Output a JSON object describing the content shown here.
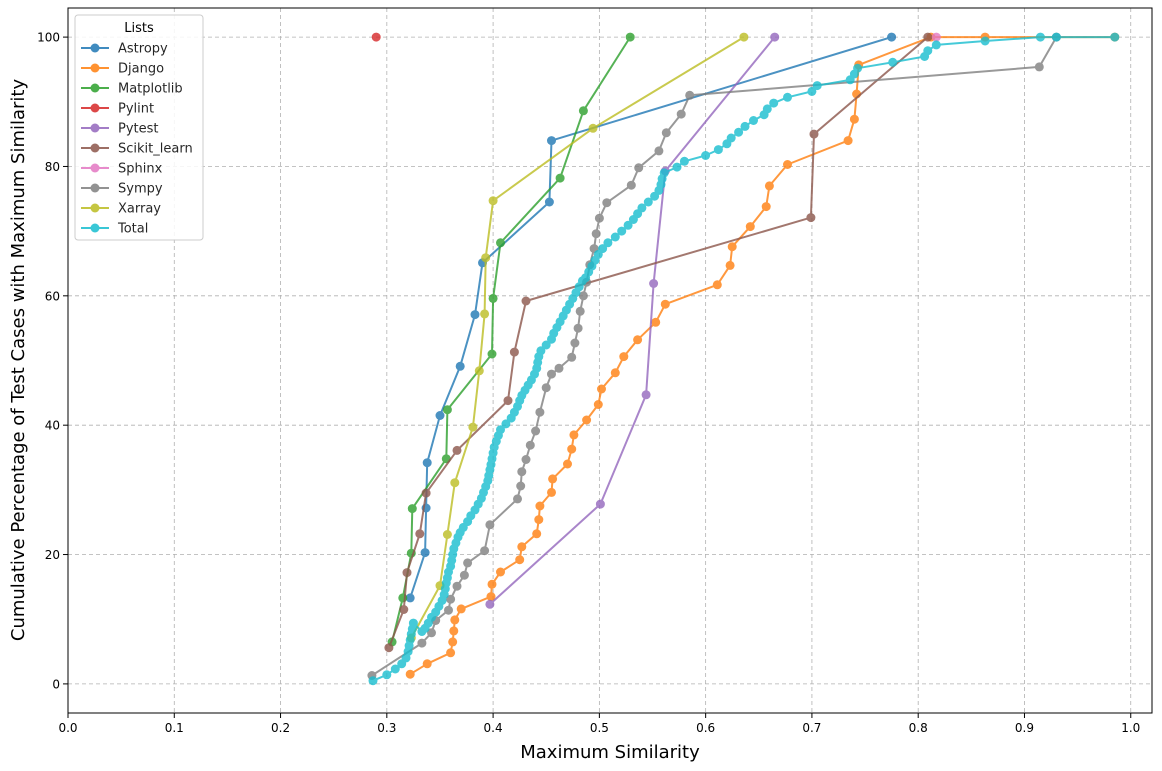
{
  "chart_data": {
    "type": "line",
    "xlabel": "Maximum Similarity",
    "ylabel": "Cumulative Percentage of Test Cases with Maximum Similarity",
    "xlim": [
      0.0,
      1.02
    ],
    "ylim": [
      -4.5,
      104.5
    ],
    "x_ticks": [
      0.0,
      0.1,
      0.2,
      0.3,
      0.4,
      0.5,
      0.6,
      0.7,
      0.8,
      0.9,
      1.0
    ],
    "x_tick_labels": [
      "0.0",
      "0.1",
      "0.2",
      "0.3",
      "0.4",
      "0.5",
      "0.6",
      "0.7",
      "0.8",
      "0.9",
      "1.0"
    ],
    "y_ticks": [
      0,
      20,
      40,
      60,
      80,
      100
    ],
    "y_tick_labels": [
      "0",
      "20",
      "40",
      "60",
      "80",
      "100"
    ],
    "grid": true,
    "legend": {
      "title": "Lists",
      "placement": "top-left"
    },
    "series": [
      {
        "name": "Astropy",
        "color": "#1f77b4",
        "x": [
          0.322,
          0.336,
          0.337,
          0.338,
          0.35,
          0.369,
          0.383,
          0.39,
          0.453,
          0.455,
          0.775
        ],
        "y": [
          13.3,
          20.3,
          27.2,
          34.2,
          41.5,
          49.1,
          57.1,
          65.1,
          74.5,
          84.0,
          100.0
        ]
      },
      {
        "name": "Django",
        "color": "#ff7f0e",
        "x": [
          0.322,
          0.338,
          0.36,
          0.362,
          0.363,
          0.364,
          0.37,
          0.398,
          0.399,
          0.407,
          0.425,
          0.427,
          0.441,
          0.443,
          0.444,
          0.455,
          0.456,
          0.47,
          0.474,
          0.476,
          0.488,
          0.499,
          0.502,
          0.515,
          0.523,
          0.536,
          0.553,
          0.562,
          0.611,
          0.623,
          0.625,
          0.642,
          0.657,
          0.66,
          0.677,
          0.734,
          0.74,
          0.742,
          0.744,
          0.812,
          0.863,
          0.985
        ],
        "y": [
          1.5,
          3.1,
          4.8,
          6.5,
          8.2,
          9.9,
          11.6,
          13.5,
          15.4,
          17.3,
          19.2,
          21.2,
          23.2,
          25.4,
          27.5,
          29.6,
          31.7,
          34.0,
          36.3,
          38.5,
          40.8,
          43.2,
          45.6,
          48.1,
          50.6,
          53.2,
          55.9,
          58.7,
          61.7,
          64.7,
          67.6,
          70.7,
          73.8,
          77.0,
          80.3,
          84.0,
          87.3,
          91.2,
          95.7,
          100.0,
          100.0,
          100.0
        ],
        "y_note": "points on curve"
      },
      {
        "name": "Matplotlib",
        "color": "#2ca02c",
        "x": [
          0.305,
          0.315,
          0.323,
          0.324,
          0.356,
          0.357,
          0.399,
          0.4,
          0.407,
          0.463,
          0.485,
          0.529
        ],
        "y": [
          6.5,
          13.3,
          20.2,
          27.1,
          34.8,
          42.4,
          51.0,
          59.6,
          68.2,
          78.2,
          88.6,
          100.0
        ]
      },
      {
        "name": "Pylint",
        "color": "#d62728",
        "x": [
          0.29
        ],
        "y": [
          100.0
        ]
      },
      {
        "name": "Pytest",
        "color": "#9467bd",
        "x": [
          0.397,
          0.501,
          0.544,
          0.551,
          0.562,
          0.665
        ],
        "y": [
          12.3,
          27.8,
          44.7,
          61.9,
          79.3,
          100.0
        ]
      },
      {
        "name": "Scikit_learn",
        "color": "#8c564b",
        "x": [
          0.302,
          0.316,
          0.319,
          0.331,
          0.337,
          0.366,
          0.414,
          0.42,
          0.431,
          0.699,
          0.702,
          0.809
        ],
        "y": [
          5.6,
          11.5,
          17.2,
          23.2,
          29.5,
          36.1,
          43.8,
          51.3,
          59.2,
          72.1,
          85.0,
          100.0
        ]
      },
      {
        "name": "Sphinx",
        "color": "#e377c2",
        "x": [
          0.817
        ],
        "y": [
          100.0
        ]
      },
      {
        "name": "Sympy",
        "color": "#7f7f7f",
        "x": [
          0.286,
          0.333,
          0.342,
          0.346,
          0.358,
          0.36,
          0.366,
          0.373,
          0.376,
          0.392,
          0.397,
          0.423,
          0.426,
          0.427,
          0.431,
          0.435,
          0.44,
          0.444,
          0.45,
          0.455,
          0.462,
          0.474,
          0.477,
          0.48,
          0.482,
          0.485,
          0.488,
          0.491,
          0.495,
          0.497,
          0.5,
          0.507,
          0.53,
          0.537,
          0.556,
          0.563,
          0.577,
          0.585,
          0.914,
          0.93
        ],
        "y": [
          1.3,
          6.3,
          7.9,
          9.8,
          11.4,
          13.1,
          15.1,
          16.8,
          18.7,
          20.6,
          24.6,
          28.6,
          30.6,
          32.8,
          34.7,
          36.9,
          39.1,
          42.0,
          45.8,
          47.9,
          48.8,
          50.5,
          52.7,
          55.0,
          57.6,
          60.0,
          62.1,
          64.8,
          67.3,
          69.6,
          72.0,
          74.4,
          77.1,
          79.8,
          82.4,
          85.2,
          88.1,
          91.0,
          95.4,
          100.0
        ]
      },
      {
        "name": "Xarray",
        "color": "#bcbd22",
        "x": [
          0.323,
          0.35,
          0.357,
          0.364,
          0.381,
          0.387,
          0.392,
          0.393,
          0.4,
          0.494,
          0.636
        ],
        "y": [
          7.1,
          15.2,
          23.1,
          31.1,
          39.7,
          48.4,
          57.2,
          65.9,
          74.7,
          85.9,
          100.0
        ]
      },
      {
        "name": "Total",
        "color": "#17becf",
        "x": [
          0.287,
          0.3,
          0.308,
          0.314,
          0.318,
          0.32,
          0.321,
          0.322,
          0.323,
          0.324,
          0.325,
          0.333,
          0.336,
          0.339,
          0.342,
          0.346,
          0.349,
          0.352,
          0.354,
          0.355,
          0.356,
          0.357,
          0.358,
          0.36,
          0.361,
          0.362,
          0.363,
          0.365,
          0.367,
          0.369,
          0.372,
          0.376,
          0.379,
          0.383,
          0.386,
          0.389,
          0.391,
          0.393,
          0.395,
          0.396,
          0.397,
          0.398,
          0.399,
          0.4,
          0.401,
          0.403,
          0.405,
          0.407,
          0.412,
          0.417,
          0.42,
          0.423,
          0.425,
          0.427,
          0.43,
          0.433,
          0.436,
          0.439,
          0.441,
          0.442,
          0.443,
          0.445,
          0.45,
          0.455,
          0.457,
          0.46,
          0.463,
          0.466,
          0.469,
          0.472,
          0.475,
          0.478,
          0.481,
          0.484,
          0.487,
          0.49,
          0.493,
          0.496,
          0.499,
          0.503,
          0.508,
          0.515,
          0.521,
          0.527,
          0.532,
          0.536,
          0.54,
          0.546,
          0.552,
          0.556,
          0.558,
          0.559,
          0.561,
          0.573,
          0.58,
          0.6,
          0.612,
          0.62,
          0.624,
          0.631,
          0.637,
          0.645,
          0.655,
          0.658,
          0.664,
          0.677,
          0.7,
          0.705,
          0.736,
          0.74,
          0.743,
          0.776,
          0.806,
          0.809,
          0.817,
          0.863,
          0.915,
          0.93,
          0.985
        ],
        "y": [
          0.5,
          1.4,
          2.3,
          3.1,
          4.0,
          5.0,
          5.9,
          6.8,
          7.7,
          8.5,
          9.4,
          8.1,
          8.6,
          9.4,
          10.3,
          11.1,
          12.0,
          12.9,
          13.8,
          14.7,
          15.6,
          16.4,
          17.3,
          18.2,
          19.1,
          20.0,
          20.9,
          21.8,
          22.7,
          23.4,
          24.2,
          25.1,
          26.0,
          26.9,
          27.8,
          28.7,
          29.6,
          30.5,
          31.4,
          32.2,
          33.1,
          33.9,
          34.8,
          35.7,
          36.6,
          37.5,
          38.4,
          39.3,
          40.2,
          41.1,
          42.0,
          42.9,
          43.8,
          44.6,
          45.4,
          46.2,
          47.0,
          47.9,
          48.8,
          49.7,
          50.6,
          51.5,
          52.4,
          53.3,
          54.2,
          55.1,
          56.0,
          56.9,
          57.8,
          58.7,
          59.6,
          60.5,
          61.4,
          62.3,
          62.8,
          63.7,
          64.6,
          65.5,
          66.4,
          67.3,
          68.2,
          69.1,
          70.0,
          70.9,
          71.8,
          72.7,
          73.6,
          74.5,
          75.4,
          76.3,
          77.2,
          78.1,
          79.0,
          79.9,
          80.8,
          81.7,
          82.6,
          83.5,
          84.4,
          85.3,
          86.2,
          87.1,
          88.0,
          88.9,
          89.8,
          90.7,
          91.6,
          92.5,
          93.4,
          94.3,
          95.2,
          96.1,
          97.0,
          97.9,
          98.8,
          99.4,
          100.0,
          100.0,
          100.0
        ],
        "y_note": "points on curve"
      }
    ]
  }
}
